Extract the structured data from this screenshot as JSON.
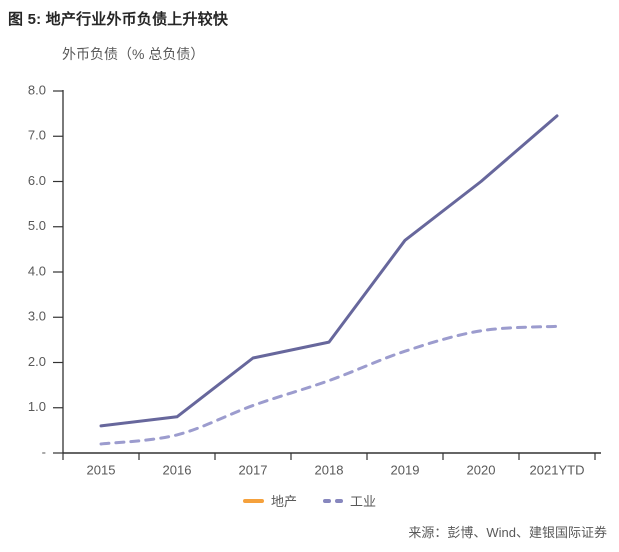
{
  "figure": {
    "title": "图 5: 地产行业外币负债上升较快",
    "source": "来源：彭博、Wind、建银国际证券"
  },
  "chart_data": {
    "type": "line",
    "title": "外币负债（% 总负债）",
    "categories": [
      "2015",
      "2016",
      "2017",
      "2018",
      "2019",
      "2020",
      "2021YTD"
    ],
    "series": [
      {
        "name": "地产",
        "values": [
          0.6,
          0.8,
          2.1,
          2.45,
          4.7,
          6.0,
          7.45
        ],
        "style": "solid",
        "line_color": "#67679C",
        "legend_color": "#F5A13C",
        "smooth": false
      },
      {
        "name": "工业",
        "values": [
          0.2,
          0.4,
          1.05,
          1.6,
          2.25,
          2.7,
          2.8
        ],
        "style": "dashed",
        "line_color": "#9C9CCE",
        "legend_color": "#8787BE",
        "smooth": true
      }
    ],
    "y_ticks": [
      {
        "label": "8.0",
        "value": 8
      },
      {
        "label": "7.0",
        "value": 7
      },
      {
        "label": "6.0",
        "value": 6
      },
      {
        "label": "5.0",
        "value": 5
      },
      {
        "label": "4.0",
        "value": 4
      },
      {
        "label": "3.0",
        "value": 3
      },
      {
        "label": "2.0",
        "value": 2
      },
      {
        "label": "1.0",
        "value": 1
      },
      {
        "label": "-",
        "value": 0
      }
    ],
    "ylim": [
      0,
      8
    ],
    "grid": false,
    "legend_position": "bottom",
    "colors": {
      "axis": "#333333",
      "tick_text": "#595959"
    }
  }
}
